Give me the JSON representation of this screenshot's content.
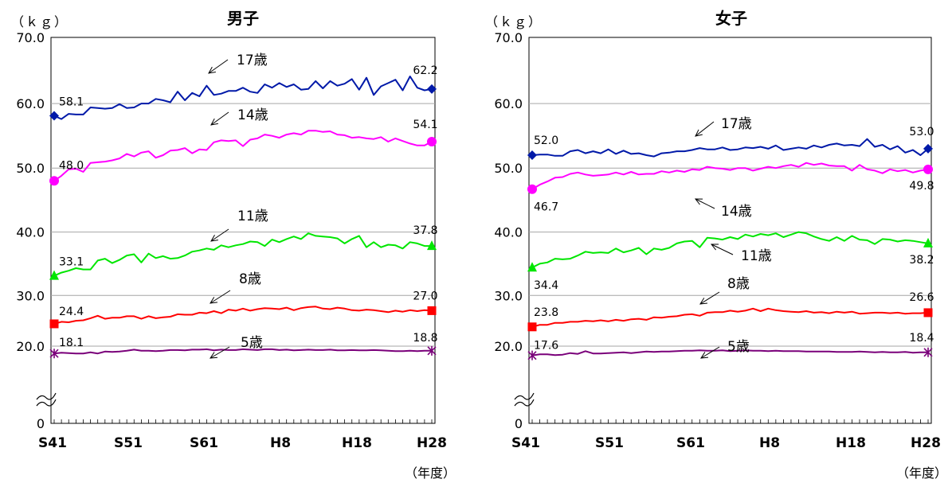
{
  "chart_data": [
    {
      "type": "line",
      "title": "男子",
      "unit_label": "（ｋｇ）",
      "year_label": "（年度）",
      "x_tick_labels": [
        "S41",
        "S51",
        "S61",
        "H8",
        "H18",
        "H28"
      ],
      "y_tick_labels": [
        "0",
        "20.0",
        "30.0",
        "40.0",
        "50.0",
        "60.0",
        "70.0"
      ],
      "ylim": [
        0,
        70
      ],
      "axis_break": "0-20",
      "grid": true,
      "series": [
        {
          "name": "17歳",
          "color": "#0019a8",
          "marker": "diamond",
          "first": 58.1,
          "last": 62.2,
          "values": [
            58.1,
            57.6,
            58.4,
            58.3,
            58.3,
            59.4,
            59.3,
            59.2,
            59.3,
            59.9,
            59.3,
            59.4,
            60.0,
            60.0,
            60.7,
            60.5,
            60.2,
            61.8,
            60.5,
            61.6,
            61.1,
            62.7,
            61.3,
            61.5,
            61.9,
            61.9,
            62.4,
            61.8,
            61.6,
            62.9,
            62.4,
            63.1,
            62.5,
            62.9,
            62.1,
            62.2,
            63.4,
            62.3,
            63.4,
            62.7,
            63.0,
            63.7,
            62.1,
            63.9,
            61.3,
            62.6,
            63.1,
            63.6,
            62.0,
            64.1,
            62.4,
            62.0,
            62.2
          ]
        },
        {
          "name": "14歳",
          "color": "#ff00ff",
          "marker": "circle",
          "first": 48.0,
          "last": 54.1,
          "values": [
            48.0,
            48.8,
            49.8,
            49.9,
            49.4,
            50.8,
            50.9,
            51.0,
            51.2,
            51.5,
            52.2,
            51.8,
            52.4,
            52.6,
            51.6,
            52.0,
            52.7,
            52.8,
            53.1,
            52.3,
            52.9,
            52.8,
            54.0,
            54.3,
            54.2,
            54.3,
            53.4,
            54.4,
            54.6,
            55.2,
            55.0,
            54.7,
            55.2,
            55.4,
            55.2,
            55.8,
            55.8,
            55.6,
            55.7,
            55.2,
            55.1,
            54.7,
            54.8,
            54.6,
            54.5,
            54.8,
            54.1,
            54.6,
            54.2,
            53.8,
            53.5,
            53.5,
            54.1
          ]
        },
        {
          "name": "11歳",
          "color": "#00e600",
          "marker": "triangle",
          "first": 33.1,
          "last": 37.8,
          "values": [
            33.1,
            33.6,
            33.9,
            34.3,
            34.1,
            34.1,
            35.5,
            35.8,
            35.1,
            35.6,
            36.3,
            36.5,
            35.2,
            36.6,
            35.9,
            36.2,
            35.8,
            35.9,
            36.3,
            36.9,
            37.1,
            37.4,
            37.2,
            37.9,
            37.6,
            37.9,
            38.1,
            38.5,
            38.4,
            37.8,
            38.8,
            38.4,
            38.9,
            39.3,
            38.9,
            39.8,
            39.4,
            39.3,
            39.2,
            39.0,
            38.2,
            38.9,
            39.4,
            37.6,
            38.4,
            37.6,
            38.0,
            37.9,
            37.4,
            38.4,
            38.2,
            37.8,
            37.8
          ]
        },
        {
          "name": "8歳",
          "color": "#ff0000",
          "marker": "square",
          "first": 24.4,
          "last": 27.0,
          "values": [
            24.4,
            24.8,
            24.7,
            25.0,
            25.1,
            25.5,
            26.0,
            25.4,
            25.6,
            25.6,
            25.9,
            25.9,
            25.4,
            25.9,
            25.5,
            25.7,
            25.8,
            26.3,
            26.2,
            26.2,
            26.6,
            26.5,
            26.9,
            26.5,
            27.2,
            27.0,
            27.4,
            27.0,
            27.3,
            27.5,
            27.4,
            27.3,
            27.6,
            27.1,
            27.5,
            27.7,
            27.8,
            27.4,
            27.3,
            27.6,
            27.4,
            27.1,
            27.0,
            27.2,
            27.1,
            26.9,
            26.7,
            27.0,
            26.8,
            27.1,
            26.9,
            27.1,
            27.0
          ]
        },
        {
          "name": "5歳",
          "color": "#7a007a",
          "marker": "asterisk",
          "first": 18.1,
          "last": 18.8,
          "values": [
            18.1,
            18.3,
            18.2,
            18.1,
            18.1,
            18.4,
            18.1,
            18.6,
            18.5,
            18.6,
            18.8,
            19.1,
            18.8,
            18.8,
            18.7,
            18.8,
            19.0,
            19.0,
            18.9,
            19.1,
            19.1,
            19.2,
            18.9,
            19.1,
            19.0,
            19.0,
            19.2,
            19.1,
            19.0,
            19.2,
            19.2,
            19.0,
            19.1,
            18.9,
            19.0,
            19.1,
            19.0,
            19.0,
            19.1,
            18.9,
            18.9,
            19.0,
            18.9,
            18.9,
            19.0,
            18.9,
            18.8,
            18.7,
            18.7,
            18.8,
            18.7,
            18.8,
            18.8
          ]
        }
      ]
    },
    {
      "type": "line",
      "title": "女子",
      "unit_label": "（ｋｇ）",
      "year_label": "（年度）",
      "x_tick_labels": [
        "S41",
        "S51",
        "S61",
        "H8",
        "H18",
        "H28"
      ],
      "y_tick_labels": [
        "0",
        "20.0",
        "30.0",
        "40.0",
        "50.0",
        "60.0",
        "70.0"
      ],
      "ylim": [
        0,
        70
      ],
      "axis_break": "0-20",
      "grid": true,
      "series": [
        {
          "name": "17歳",
          "color": "#0019a8",
          "marker": "diamond",
          "first": 52.0,
          "last": 53.0,
          "values": [
            52.0,
            52.1,
            52.1,
            51.9,
            51.9,
            52.6,
            52.8,
            52.3,
            52.6,
            52.3,
            52.9,
            52.2,
            52.7,
            52.2,
            52.3,
            52.0,
            51.8,
            52.3,
            52.4,
            52.6,
            52.6,
            52.8,
            53.1,
            52.9,
            52.9,
            53.2,
            52.8,
            52.9,
            53.2,
            53.1,
            53.3,
            53.0,
            53.5,
            52.8,
            53.0,
            53.2,
            53.0,
            53.5,
            53.2,
            53.6,
            53.8,
            53.5,
            53.6,
            53.4,
            54.5,
            53.3,
            53.6,
            52.9,
            53.4,
            52.4,
            52.8,
            52.0,
            53.0
          ]
        },
        {
          "name": "14歳",
          "color": "#ff00ff",
          "marker": "circle",
          "first": 46.7,
          "last": 49.8,
          "values": [
            46.7,
            47.4,
            47.9,
            48.5,
            48.6,
            49.1,
            49.3,
            49.0,
            48.8,
            48.9,
            49.0,
            49.3,
            49.0,
            49.4,
            49.0,
            49.1,
            49.1,
            49.5,
            49.3,
            49.6,
            49.4,
            49.8,
            49.7,
            50.2,
            50.0,
            49.9,
            49.7,
            50.0,
            50.0,
            49.6,
            49.9,
            50.2,
            50.0,
            50.3,
            50.5,
            50.2,
            50.8,
            50.5,
            50.7,
            50.4,
            50.3,
            50.3,
            49.6,
            50.5,
            49.8,
            49.6,
            49.2,
            49.8,
            49.5,
            49.7,
            49.3,
            49.6,
            49.8
          ]
        },
        {
          "name": "11歳",
          "color": "#00e600",
          "marker": "triangle",
          "first": 34.4,
          "last": 38.2,
          "values": [
            34.4,
            35.0,
            35.2,
            35.8,
            35.7,
            35.8,
            36.3,
            36.9,
            36.7,
            36.8,
            36.7,
            37.4,
            36.8,
            37.1,
            37.5,
            36.5,
            37.4,
            37.2,
            37.5,
            38.2,
            38.5,
            38.6,
            37.6,
            39.1,
            39.0,
            38.8,
            39.2,
            38.9,
            39.6,
            39.3,
            39.7,
            39.5,
            39.8,
            39.2,
            39.6,
            40.0,
            39.8,
            39.3,
            38.9,
            38.6,
            39.2,
            38.6,
            39.4,
            38.8,
            38.7,
            38.1,
            38.9,
            38.8,
            38.5,
            38.7,
            38.6,
            38.4,
            38.2
          ]
        },
        {
          "name": "8歳",
          "color": "#ff0000",
          "marker": "square",
          "first": 23.8,
          "last": 26.6,
          "values": [
            23.8,
            24.2,
            24.2,
            24.6,
            24.6,
            24.8,
            24.8,
            25.0,
            24.9,
            25.1,
            24.9,
            25.2,
            25.0,
            25.3,
            25.4,
            25.2,
            25.7,
            25.6,
            25.8,
            25.9,
            26.2,
            26.3,
            26.0,
            26.6,
            26.7,
            26.7,
            27.0,
            26.8,
            27.0,
            27.4,
            26.9,
            27.4,
            27.1,
            26.9,
            26.8,
            26.7,
            26.9,
            26.6,
            26.7,
            26.5,
            26.8,
            26.6,
            26.8,
            26.4,
            26.5,
            26.6,
            26.6,
            26.5,
            26.6,
            26.4,
            26.5,
            26.5,
            26.6
          ]
        },
        {
          "name": "5歳",
          "color": "#7a007a",
          "marker": "asterisk",
          "first": 17.6,
          "last": 18.4,
          "values": [
            17.6,
            17.9,
            17.9,
            17.7,
            17.8,
            18.2,
            18.0,
            18.7,
            18.1,
            18.1,
            18.2,
            18.3,
            18.4,
            18.2,
            18.4,
            18.6,
            18.5,
            18.6,
            18.6,
            18.7,
            18.8,
            18.8,
            18.9,
            18.8,
            18.8,
            18.9,
            18.7,
            18.8,
            18.9,
            18.8,
            18.8,
            18.7,
            18.8,
            18.7,
            18.7,
            18.7,
            18.6,
            18.6,
            18.6,
            18.6,
            18.5,
            18.5,
            18.5,
            18.6,
            18.5,
            18.4,
            18.5,
            18.4,
            18.4,
            18.5,
            18.3,
            18.4,
            18.4
          ]
        }
      ]
    }
  ]
}
